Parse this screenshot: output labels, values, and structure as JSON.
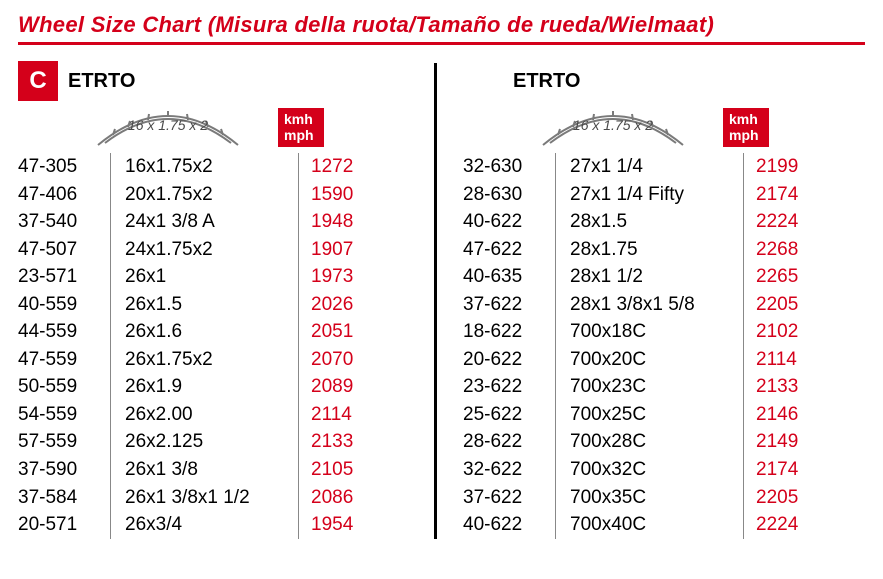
{
  "title": "Wheel Size Chart (Misura della ruota/Tamaño de rueda/Wielmaat)",
  "badge_c": "C",
  "etrto_label": "ETRTO",
  "tire_text": "16 x 1.75 x 2",
  "kmh_label_line1": "kmh",
  "kmh_label_line2": "mph",
  "colors": {
    "accent": "#d4001a",
    "text": "#000000",
    "bg": "#ffffff",
    "tire": "#7a7a7a"
  },
  "left": [
    {
      "etrto": "47-305",
      "size": "16x1.75x2",
      "val": "1272"
    },
    {
      "etrto": "47-406",
      "size": "20x1.75x2",
      "val": "1590"
    },
    {
      "etrto": "37-540",
      "size": "24x1 3/8 A",
      "val": "1948"
    },
    {
      "etrto": "47-507",
      "size": "24x1.75x2",
      "val": "1907"
    },
    {
      "etrto": "23-571",
      "size": "26x1",
      "val": "1973"
    },
    {
      "etrto": "40-559",
      "size": "26x1.5",
      "val": "2026"
    },
    {
      "etrto": "44-559",
      "size": "26x1.6",
      "val": "2051"
    },
    {
      "etrto": "47-559",
      "size": "26x1.75x2",
      "val": "2070"
    },
    {
      "etrto": "50-559",
      "size": "26x1.9",
      "val": "2089"
    },
    {
      "etrto": "54-559",
      "size": "26x2.00",
      "val": "2114"
    },
    {
      "etrto": "57-559",
      "size": "26x2.125",
      "val": "2133"
    },
    {
      "etrto": "37-590",
      "size": "26x1 3/8",
      "val": "2105"
    },
    {
      "etrto": "37-584",
      "size": "26x1 3/8x1 1/2",
      "val": "2086"
    },
    {
      "etrto": "20-571",
      "size": "26x3/4",
      "val": "1954"
    }
  ],
  "right": [
    {
      "etrto": "32-630",
      "size": "27x1 1/4",
      "val": "2199"
    },
    {
      "etrto": "28-630",
      "size": "27x1 1/4 Fifty",
      "val": "2174"
    },
    {
      "etrto": "40-622",
      "size": "28x1.5",
      "val": "2224"
    },
    {
      "etrto": "47-622",
      "size": "28x1.75",
      "val": "2268"
    },
    {
      "etrto": "40-635",
      "size": "28x1 1/2",
      "val": "2265"
    },
    {
      "etrto": "37-622",
      "size": "28x1 3/8x1 5/8",
      "val": "2205"
    },
    {
      "etrto": "18-622",
      "size": "700x18C",
      "val": "2102"
    },
    {
      "etrto": "20-622",
      "size": "700x20C",
      "val": "2114"
    },
    {
      "etrto": "23-622",
      "size": "700x23C",
      "val": "2133"
    },
    {
      "etrto": "25-622",
      "size": "700x25C",
      "val": "2146"
    },
    {
      "etrto": "28-622",
      "size": "700x28C",
      "val": "2149"
    },
    {
      "etrto": "32-622",
      "size": "700x32C",
      "val": "2174"
    },
    {
      "etrto": "37-622",
      "size": "700x35C",
      "val": "2205"
    },
    {
      "etrto": "40-622",
      "size": "700x40C",
      "val": "2224"
    }
  ]
}
